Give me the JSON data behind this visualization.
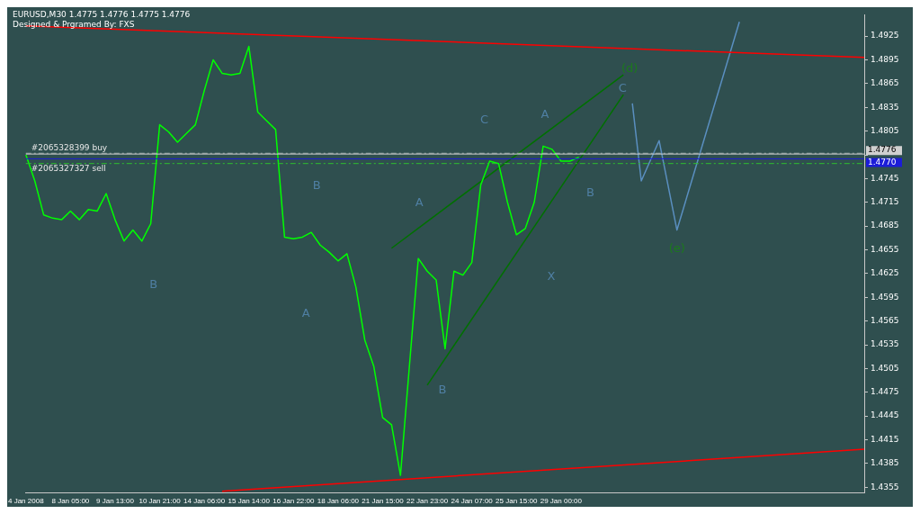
{
  "chart_data": {
    "type": "line",
    "title": "EURUSD,M30  1.4775 1.4776 1.4775 1.4776",
    "subtitle": "Designed & Prgramed By: FXS",
    "categories": [
      "4 Jan 2008",
      null,
      null,
      null,
      null,
      "8 Jan 05:00",
      null,
      null,
      null,
      null,
      "9 Jan 13:00",
      null,
      null,
      null,
      null,
      "10 Jan 21:00",
      null,
      null,
      null,
      null,
      "14 Jan 06:00",
      null,
      null,
      null,
      null,
      "15 Jan 14:00",
      null,
      null,
      null,
      null,
      "16 Jan 22:00",
      null,
      null,
      null,
      null,
      "18 Jan 06:00",
      null,
      null,
      null,
      null,
      "21 Jan 15:00",
      null,
      null,
      null,
      null,
      "22 Jan 23:00",
      null,
      null,
      null,
      null,
      "24 Jan 07:00",
      null,
      null,
      null,
      null,
      "25 Jan 15:00",
      null,
      null,
      null,
      null,
      "29 Jan 00:00",
      null,
      null,
      null,
      null,
      null,
      null,
      null,
      null,
      null,
      null,
      null,
      null,
      null,
      null,
      null,
      null,
      null,
      null,
      null,
      null,
      null,
      null,
      null,
      null,
      null,
      null,
      null,
      null,
      null,
      null,
      null,
      null,
      null,
      null
    ],
    "series": [
      {
        "color": "#00ff00",
        "values": [
          1.4775,
          1.4742,
          1.4699,
          1.4695,
          1.4693,
          1.4704,
          1.4693,
          1.4706,
          1.4704,
          1.4726,
          1.4693,
          1.4666,
          1.468,
          1.4666,
          1.4688,
          1.4813,
          1.4804,
          1.4791,
          1.4802,
          1.4813,
          1.4856,
          1.4895,
          1.4878,
          1.4876,
          1.4878,
          1.4912,
          1.4829,
          1.4818,
          1.4807,
          1.4671,
          1.4669,
          1.4671,
          1.4677,
          1.4661,
          1.4652,
          1.4641,
          1.465,
          1.4608,
          1.4541,
          1.4508,
          1.4443,
          1.4434,
          1.437,
          1.4508,
          1.4644,
          1.4628,
          1.4617,
          1.453,
          1.4628,
          1.4623,
          1.4639,
          1.4737,
          1.4767,
          1.4764,
          1.4715,
          1.4674,
          1.4682,
          1.4715,
          1.4786,
          1.4782,
          1.4767,
          1.4767,
          1.4772,
          null,
          null,
          null,
          null,
          null,
          null,
          null,
          null,
          null,
          null,
          null,
          null,
          null,
          null,
          null,
          null,
          null,
          null,
          null,
          null,
          null,
          null,
          null,
          null,
          null,
          null,
          null,
          null,
          null,
          null,
          null,
          null
        ]
      },
      {
        "color": "#ff0000",
        "values": [
          1.4938,
          null,
          null,
          null,
          null,
          null,
          null,
          null,
          null,
          null,
          null,
          null,
          null,
          null,
          null,
          null,
          null,
          null,
          null,
          null,
          null,
          null,
          null,
          null,
          null,
          null,
          null,
          null,
          null,
          null,
          null,
          null,
          null,
          null,
          null,
          null,
          null,
          null,
          null,
          null,
          null,
          null,
          null,
          null,
          null,
          null,
          null,
          null,
          null,
          null,
          null,
          null,
          null,
          null,
          null,
          null,
          null,
          null,
          null,
          null,
          null,
          null,
          null,
          null,
          null,
          null,
          null,
          null,
          null,
          null,
          null,
          null,
          null,
          null,
          null,
          null,
          null,
          null,
          null,
          null,
          null,
          null,
          null,
          null,
          null,
          null,
          null,
          null,
          null,
          null,
          null,
          null,
          null,
          null,
          1.4898
        ]
      },
      {
        "color": "#ff0000",
        "values": [
          null,
          null,
          null,
          null,
          null,
          null,
          null,
          null,
          null,
          null,
          null,
          null,
          null,
          null,
          null,
          null,
          null,
          null,
          null,
          null,
          null,
          null,
          1.435,
          null,
          null,
          null,
          null,
          null,
          null,
          null,
          null,
          null,
          null,
          null,
          null,
          null,
          null,
          null,
          null,
          null,
          null,
          null,
          null,
          null,
          null,
          null,
          null,
          null,
          null,
          null,
          null,
          null,
          null,
          null,
          null,
          null,
          null,
          null,
          null,
          null,
          null,
          null,
          null,
          null,
          null,
          null,
          null,
          null,
          null,
          null,
          null,
          null,
          null,
          null,
          null,
          null,
          null,
          null,
          null,
          null,
          null,
          null,
          null,
          null,
          null,
          null,
          null,
          null,
          null,
          null,
          null,
          null,
          null,
          null,
          1.4403
        ]
      },
      {
        "color": "#007000",
        "values": [
          null,
          null,
          null,
          null,
          null,
          null,
          null,
          null,
          null,
          null,
          null,
          null,
          null,
          null,
          null,
          null,
          null,
          null,
          null,
          null,
          null,
          null,
          null,
          null,
          null,
          null,
          null,
          null,
          null,
          null,
          null,
          null,
          null,
          null,
          null,
          null,
          null,
          null,
          null,
          null,
          null,
          1.4657,
          null,
          null,
          null,
          null,
          null,
          null,
          null,
          null,
          null,
          null,
          null,
          null,
          null,
          null,
          null,
          null,
          null,
          null,
          null,
          null,
          null,
          null,
          null,
          null,
          null,
          1.4876,
          null,
          null,
          null,
          null,
          null,
          null,
          null,
          null,
          null,
          null,
          null,
          null,
          null,
          null,
          null,
          null,
          null,
          null,
          null,
          null,
          null,
          null,
          null,
          null,
          null,
          null,
          null
        ]
      },
      {
        "color": "#007000",
        "values": [
          null,
          null,
          null,
          null,
          null,
          null,
          null,
          null,
          null,
          null,
          null,
          null,
          null,
          null,
          null,
          null,
          null,
          null,
          null,
          null,
          null,
          null,
          null,
          null,
          null,
          null,
          null,
          null,
          null,
          null,
          null,
          null,
          null,
          null,
          null,
          null,
          null,
          null,
          null,
          null,
          null,
          null,
          null,
          null,
          null,
          1.4484,
          null,
          null,
          null,
          null,
          null,
          null,
          null,
          null,
          null,
          null,
          null,
          null,
          null,
          null,
          null,
          null,
          null,
          null,
          null,
          null,
          null,
          1.4851,
          null,
          null,
          null,
          null,
          null,
          null,
          null,
          null,
          null,
          null,
          null,
          null,
          null,
          null,
          null,
          null,
          null,
          null,
          null,
          null,
          null,
          null,
          null,
          null,
          null,
          null,
          null
        ]
      },
      {
        "color": "#5a8fc0",
        "values": [
          null,
          null,
          null,
          null,
          null,
          null,
          null,
          null,
          null,
          null,
          null,
          null,
          null,
          null,
          null,
          null,
          null,
          null,
          null,
          null,
          null,
          null,
          null,
          null,
          null,
          null,
          null,
          null,
          null,
          null,
          null,
          null,
          null,
          null,
          null,
          null,
          null,
          null,
          null,
          null,
          null,
          null,
          null,
          null,
          null,
          null,
          null,
          null,
          null,
          null,
          null,
          null,
          null,
          null,
          null,
          null,
          null,
          null,
          null,
          null,
          null,
          null,
          null,
          null,
          null,
          null,
          null,
          null,
          1.484,
          1.4742,
          null,
          1.4793,
          null,
          1.468,
          null,
          null,
          null,
          null,
          null,
          null,
          1.4943,
          null,
          null,
          null,
          null,
          null,
          null,
          null,
          null,
          null,
          null,
          null,
          null,
          null,
          null
        ]
      }
    ],
    "ylim": [
      1.4348,
      1.4952
    ],
    "yticks": [
      1.4355,
      1.4385,
      1.4415,
      1.4445,
      1.4475,
      1.4505,
      1.4535,
      1.4565,
      1.4595,
      1.4625,
      1.4655,
      1.4685,
      1.4715,
      1.4745,
      {
        "value": 1.4775,
        "label": null
      },
      1.4805,
      1.4835,
      1.4865,
      1.4895,
      1.4925
    ],
    "ref_lines": [
      {
        "axis": "y",
        "value": 1.4777,
        "label": "#2065328399 buy",
        "color": "#9aa8a8",
        "line_style": "dashed"
      },
      {
        "axis": "y",
        "value": 1.4764,
        "label": "#2065327327 sell",
        "color": "#2fbf2f",
        "line_style": "dashed"
      },
      {
        "axis": "y",
        "value": 1.4776,
        "label": "1.4776",
        "color": "#d0d0d0",
        "line_style": "solid"
      },
      {
        "axis": "y",
        "value": 1.477,
        "label": "1.4770",
        "color": "#1c1cd8",
        "line_style": "solid"
      }
    ],
    "annotations": [
      "B",
      "A",
      "B",
      "A",
      "B",
      "C",
      "A",
      "X",
      "B",
      "C",
      "(d)",
      "(e)"
    ],
    "grid": false,
    "legend": false,
    "marker": "none",
    "line_style": "solid"
  }
}
